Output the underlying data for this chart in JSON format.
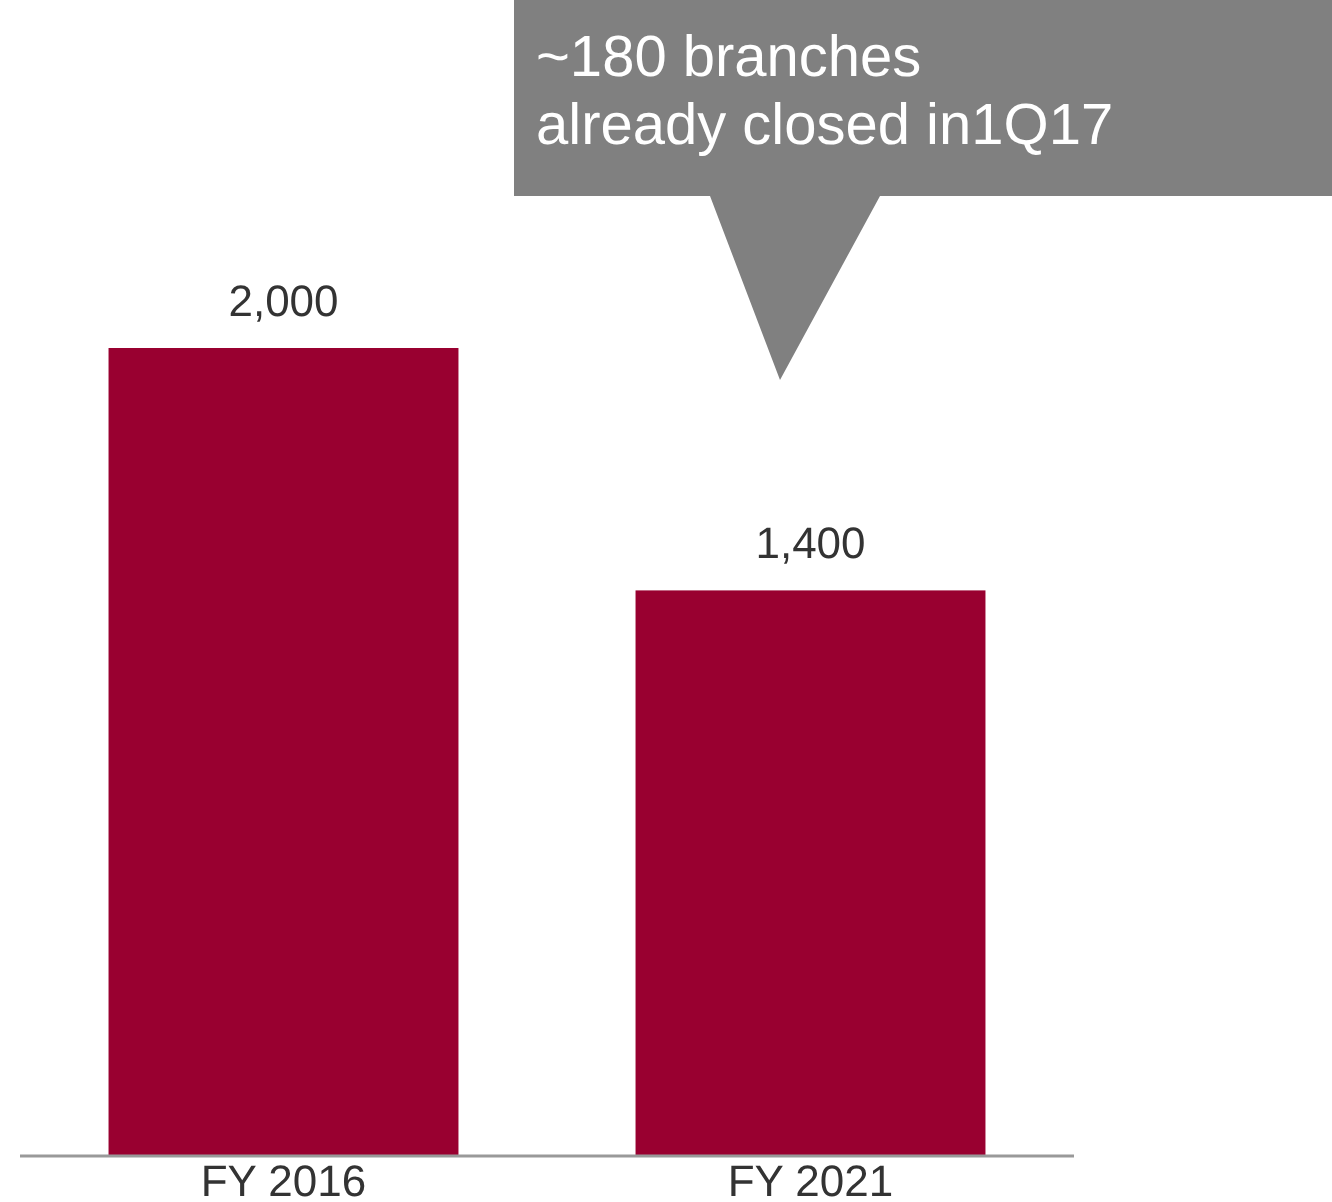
{
  "chart_data": {
    "type": "bar",
    "categories": [
      "FY 2016",
      "FY 2021"
    ],
    "values": [
      2000,
      1400
    ],
    "color": "#990030",
    "value_labels": [
      "2,000",
      "1,400"
    ],
    "annotations": [
      "~180 branches\nalready closed in1Q17"
    ]
  }
}
